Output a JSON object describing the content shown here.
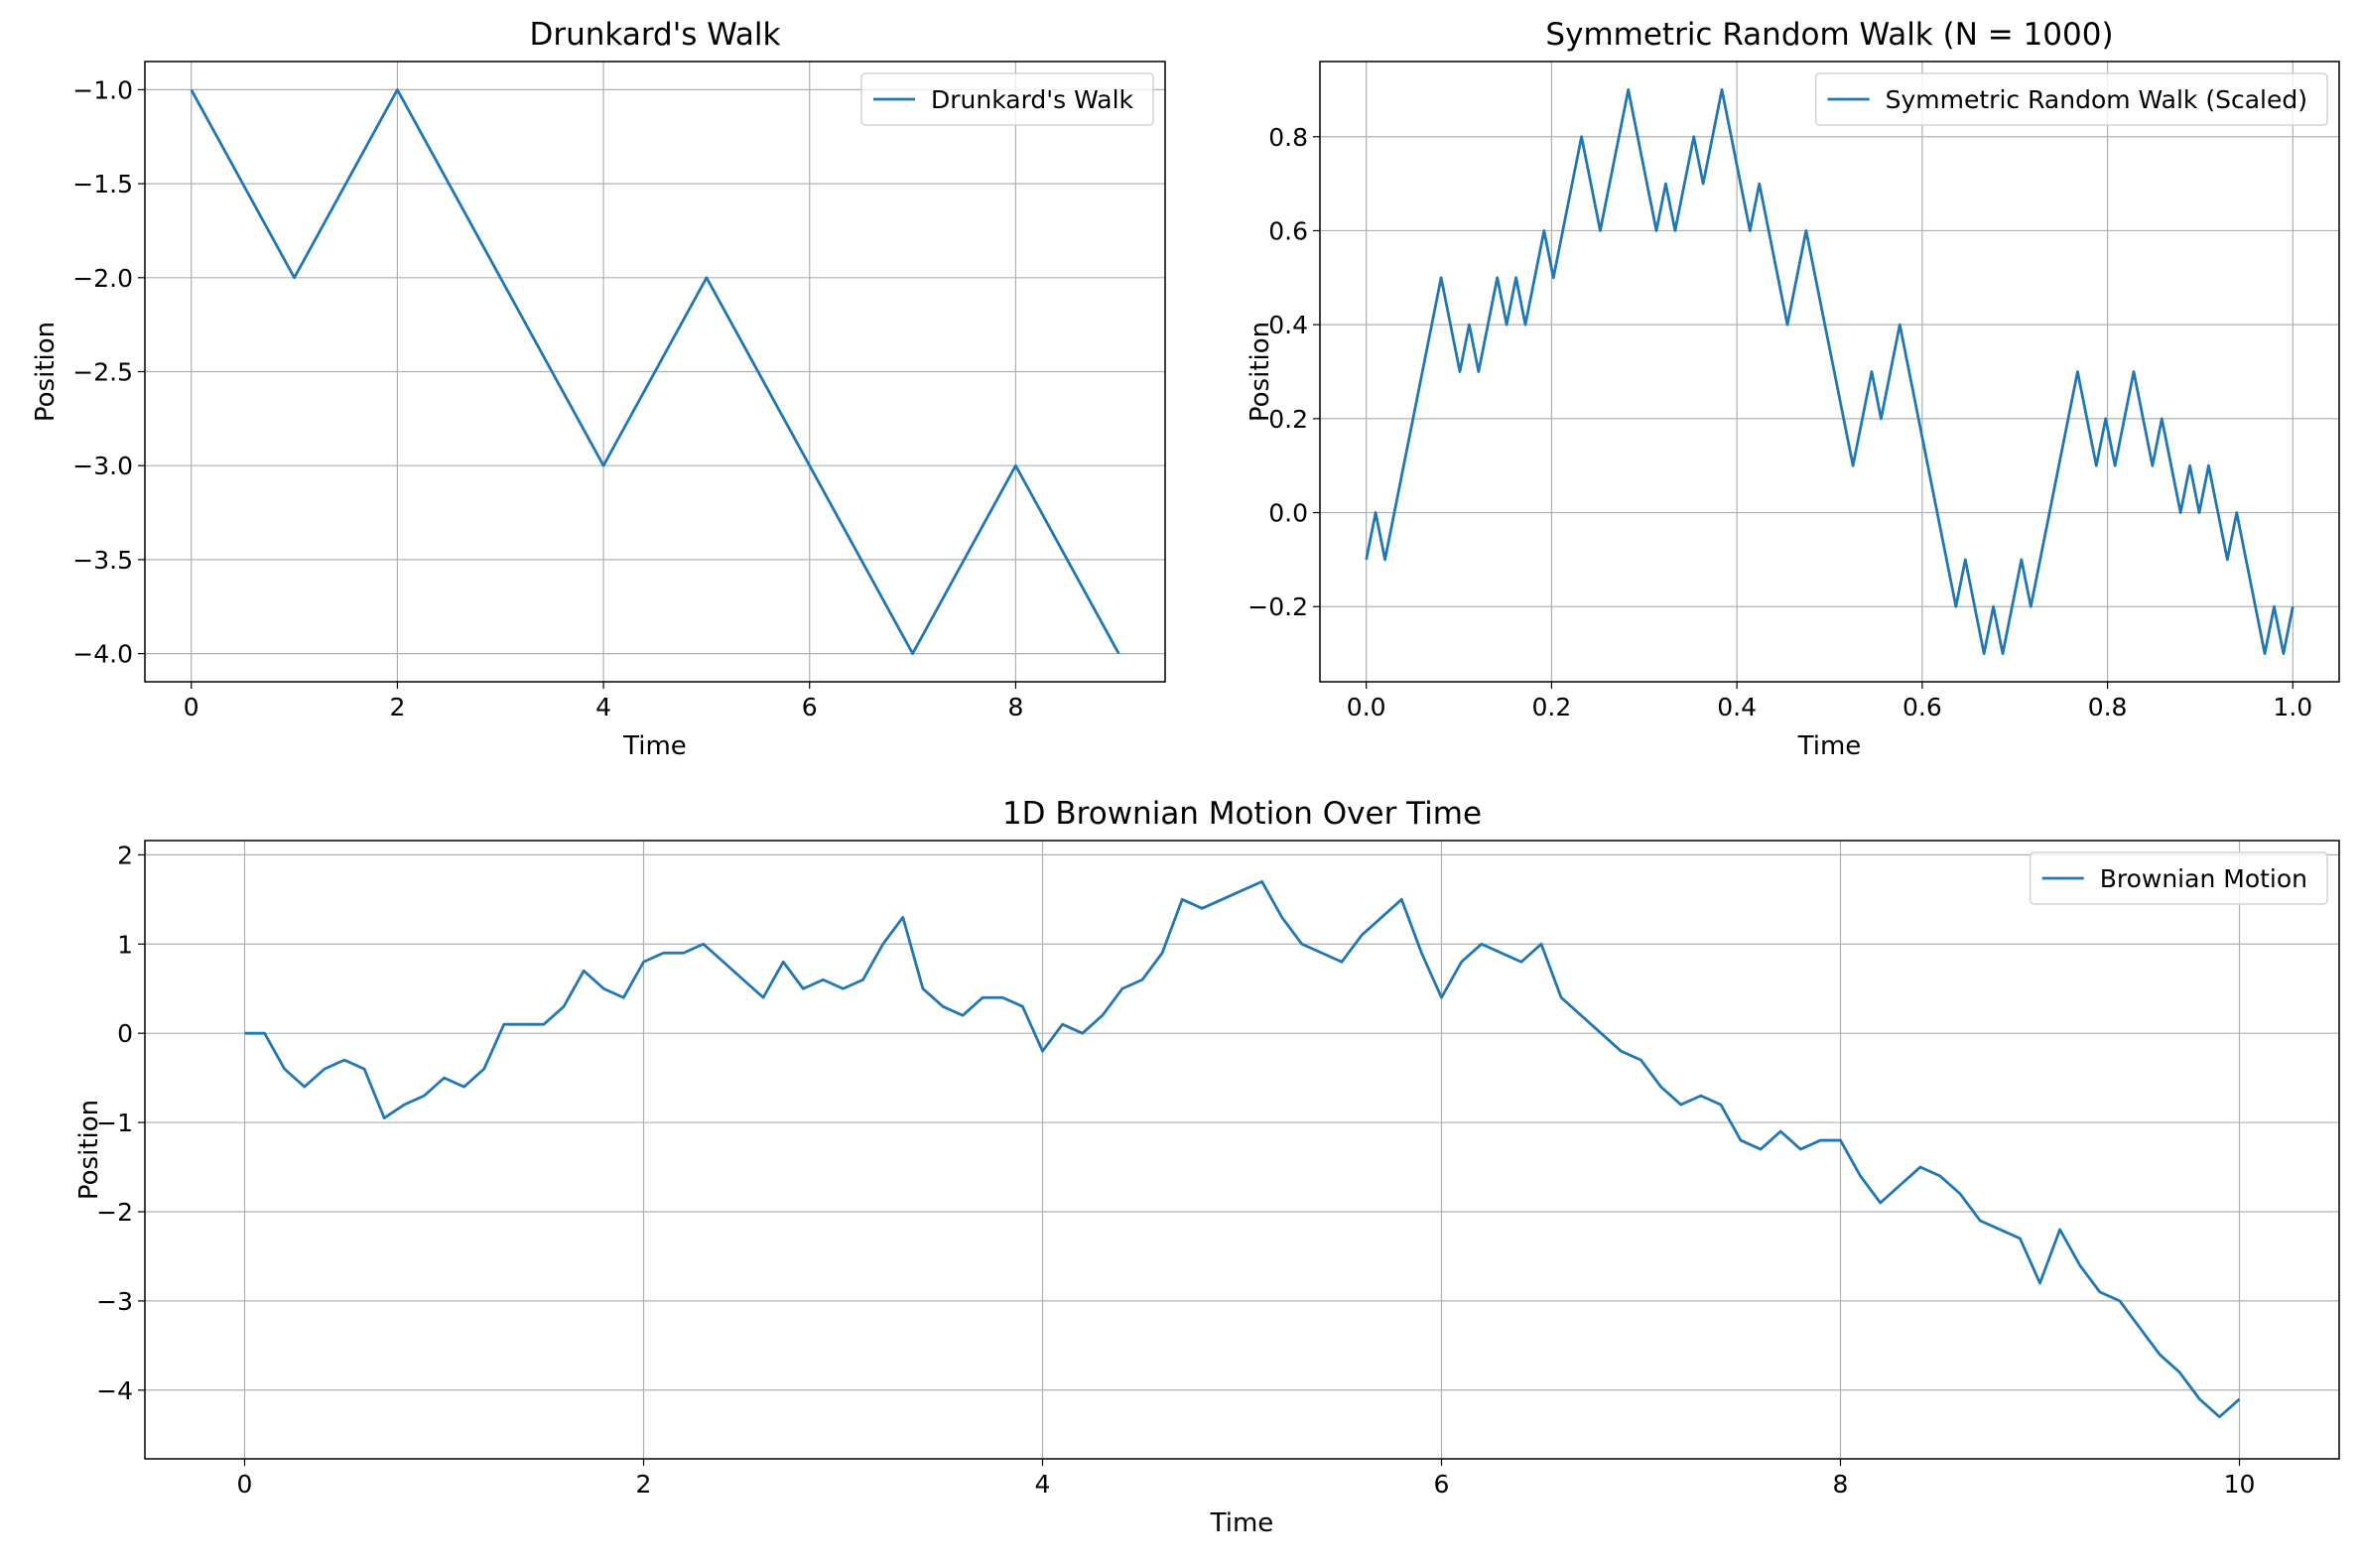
{
  "chart_data": [
    {
      "type": "line",
      "title": "Drunkard's Walk",
      "xlabel": "Time",
      "ylabel": "Position",
      "x": [
        0,
        1,
        2,
        3,
        4,
        5,
        6,
        7,
        8,
        9
      ],
      "series": [
        {
          "name": "Drunkard's Walk",
          "color": "#1f77b4",
          "values": [
            -1,
            -2,
            -1,
            -2,
            -3,
            -2,
            -3,
            -4,
            -3,
            -4
          ]
        }
      ],
      "xlim": [
        -0.45,
        9.45
      ],
      "ylim": [
        -4.15,
        -0.85
      ],
      "xticks": [
        0,
        2,
        4,
        6,
        8
      ],
      "yticks": [
        {
          "value": -1.0,
          "label": "−1.0"
        },
        {
          "value": -1.5,
          "label": "−1.5"
        },
        {
          "value": -2.0,
          "label": "−2.0"
        },
        {
          "value": -2.5,
          "label": "−2.5"
        },
        {
          "value": -3.0,
          "label": "−3.0"
        },
        {
          "value": -3.5,
          "label": "−3.5"
        },
        {
          "value": -4.0,
          "label": "−4.0"
        }
      ],
      "grid": true,
      "legend": "upper right"
    },
    {
      "type": "line",
      "title": "Symmetric Random Walk (N = 1000)",
      "xlabel": "Time",
      "ylabel": "Position",
      "x": [
        0,
        0.0101,
        0.0202,
        0.0303,
        0.0404,
        0.0505,
        0.0606,
        0.0707,
        0.0808,
        0.0909,
        0.101,
        0.1111,
        0.1212,
        0.1313,
        0.1414,
        0.1515,
        0.1616,
        0.1717,
        0.1818,
        0.1919,
        0.202,
        0.2121,
        0.2222,
        0.2323,
        0.2424,
        0.2525,
        0.2626,
        0.2727,
        0.2828,
        0.2929,
        0.303,
        0.3131,
        0.3232,
        0.3333,
        0.3434,
        0.3535,
        0.3636,
        0.3737,
        0.3838,
        0.3939,
        0.404,
        0.4141,
        0.4242,
        0.4343,
        0.4444,
        0.4545,
        0.4646,
        0.4747,
        0.4848,
        0.4949,
        0.5051,
        0.5152,
        0.5253,
        0.5354,
        0.5455,
        0.5556,
        0.5657,
        0.5758,
        0.5859,
        0.596,
        0.6061,
        0.6162,
        0.6263,
        0.6364,
        0.6465,
        0.6566,
        0.6667,
        0.6768,
        0.6869,
        0.697,
        0.7071,
        0.7172,
        0.7273,
        0.7374,
        0.7475,
        0.7576,
        0.7677,
        0.7778,
        0.7879,
        0.798,
        0.8081,
        0.8182,
        0.8283,
        0.8384,
        0.8485,
        0.8586,
        0.8687,
        0.8788,
        0.8889,
        0.899,
        0.9091,
        0.9192,
        0.9293,
        0.9394,
        0.9495,
        0.9596,
        0.9697,
        0.9798,
        0.9899,
        1
      ],
      "series": [
        {
          "name": "Symmetric Random Walk (Scaled)",
          "color": "#1f77b4",
          "values": [
            -0.1,
            0.0,
            -0.1,
            0.0,
            0.1,
            0.2,
            0.3,
            0.4,
            0.5,
            0.4,
            0.3,
            0.4,
            0.3,
            0.4,
            0.5,
            0.4,
            0.5,
            0.4,
            0.5,
            0.6,
            0.5,
            0.6,
            0.7,
            0.8,
            0.7,
            0.6,
            0.7,
            0.8,
            0.9,
            0.8,
            0.7,
            0.6,
            0.7,
            0.6,
            0.7,
            0.8,
            0.7,
            0.8,
            0.9,
            0.8,
            0.7,
            0.6,
            0.7,
            0.6,
            0.5,
            0.4,
            0.5,
            0.6,
            0.5,
            0.4,
            0.3,
            0.2,
            0.1,
            0.2,
            0.3,
            0.2,
            0.3,
            0.4,
            0.3,
            0.2,
            0.1,
            0.0,
            -0.1,
            -0.2,
            -0.1,
            -0.2,
            -0.3,
            -0.2,
            -0.3,
            -0.2,
            -0.1,
            -0.2,
            -0.1,
            0.0,
            0.1,
            0.2,
            0.3,
            0.2,
            0.1,
            0.2,
            0.1,
            0.2,
            0.3,
            0.2,
            0.1,
            0.2,
            0.1,
            0.0,
            0.1,
            0.0,
            0.1,
            0.0,
            -0.1,
            0.0,
            -0.1,
            -0.2,
            -0.3,
            -0.2,
            -0.3,
            -0.2
          ]
        }
      ],
      "xlim": [
        -0.05,
        1.05
      ],
      "ylim": [
        -0.36,
        0.96
      ],
      "xticks": [
        {
          "value": 0,
          "label": "0.0"
        },
        0.2,
        0.4,
        0.6,
        0.8,
        {
          "value": 1,
          "label": "1.0"
        }
      ],
      "yticks": [
        {
          "value": -0.2,
          "label": "−0.2"
        },
        {
          "value": 0,
          "label": "0.0"
        },
        0.2,
        0.4,
        0.6,
        0.8
      ],
      "grid": true,
      "legend": "upper right"
    },
    {
      "type": "line",
      "title": "1D Brownian Motion Over Time",
      "xlabel": "Time",
      "ylabel": "Position",
      "x": [
        0,
        0.1,
        0.2,
        0.3,
        0.4,
        0.5,
        0.6,
        0.7,
        0.8,
        0.9,
        1.0,
        1.1,
        1.2,
        1.3,
        1.4,
        1.5,
        1.6,
        1.7,
        1.8,
        1.9,
        2.0,
        2.1,
        2.2,
        2.3,
        2.4,
        2.5,
        2.6,
        2.7,
        2.8,
        2.9,
        3.0,
        3.1,
        3.2,
        3.3,
        3.4,
        3.5,
        3.6,
        3.7,
        3.8,
        3.9,
        4.0,
        4.1,
        4.2,
        4.3,
        4.4,
        4.5,
        4.6,
        4.7,
        4.8,
        4.9,
        5.0,
        5.1,
        5.2,
        5.3,
        5.4,
        5.5,
        5.6,
        5.7,
        5.8,
        5.9,
        6.0,
        6.1,
        6.2,
        6.3,
        6.4,
        6.5,
        6.6,
        6.7,
        6.8,
        6.9,
        7.0,
        7.1,
        7.2,
        7.3,
        7.4,
        7.5,
        7.6,
        7.7,
        7.8,
        7.9,
        8.0,
        8.1,
        8.2,
        8.3,
        8.4,
        8.5,
        8.6,
        8.7,
        8.8,
        8.9,
        9.0,
        9.1,
        9.2,
        9.3,
        9.4,
        9.5,
        9.6,
        9.7,
        9.8,
        9.9,
        10.0
      ],
      "series": [
        {
          "name": "Brownian Motion",
          "color": "#1f77b4",
          "values": [
            0,
            0.0,
            -0.4,
            -0.6,
            -0.4,
            -0.3,
            -0.4,
            -0.95,
            -0.8,
            -0.7,
            -0.5,
            -0.6,
            -0.4,
            0.1,
            0.1,
            0.1,
            0.3,
            0.7,
            0.5,
            0.4,
            0.8,
            0.9,
            0.9,
            1.0,
            0.8,
            0.6,
            0.4,
            0.8,
            0.5,
            0.6,
            0.5,
            0.6,
            1.0,
            1.3,
            0.5,
            0.3,
            0.2,
            0.4,
            0.4,
            0.3,
            -0.2,
            0.1,
            0.0,
            0.2,
            0.5,
            0.6,
            0.9,
            1.5,
            1.4,
            1.5,
            1.6,
            1.7,
            1.3,
            1.0,
            0.9,
            0.8,
            1.1,
            1.3,
            1.5,
            0.9,
            0.4,
            0.8,
            1.0,
            0.9,
            0.8,
            1.0,
            0.4,
            0.2,
            0.0,
            -0.2,
            -0.3,
            -0.6,
            -0.8,
            -0.7,
            -0.8,
            -1.2,
            -1.3,
            -1.1,
            -1.3,
            -1.2,
            -1.2,
            -1.6,
            -1.9,
            -1.7,
            -1.5,
            -1.6,
            -1.8,
            -2.1,
            -2.2,
            -2.3,
            -2.8,
            -2.2,
            -2.6,
            -2.9,
            -3.0,
            -3.3,
            -3.6,
            -3.8,
            -4.1,
            -4.3,
            -4.1
          ]
        }
      ],
      "xlim": [
        -0.5,
        10.5
      ],
      "ylim": [
        -4.77,
        2.16
      ],
      "xticks": [
        0,
        2,
        4,
        6,
        8,
        10
      ],
      "yticks": [
        {
          "value": -4,
          "label": "−4"
        },
        {
          "value": -3,
          "label": "−3"
        },
        {
          "value": -2,
          "label": "−2"
        },
        {
          "value": -1,
          "label": "−1"
        },
        0,
        1,
        2
      ],
      "grid": true,
      "legend": "upper right"
    }
  ]
}
